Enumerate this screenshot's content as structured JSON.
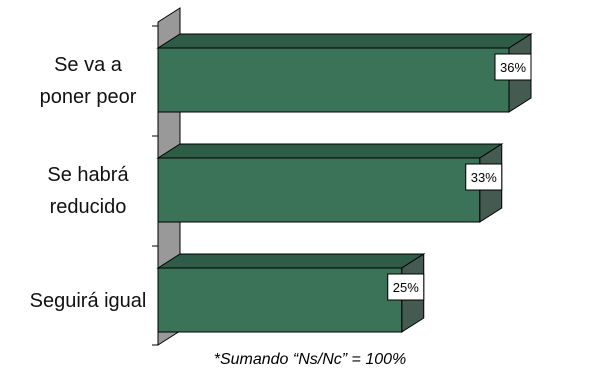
{
  "chart_data": {
    "type": "bar",
    "orientation": "horizontal",
    "three_d": true,
    "categories": [
      [
        "Se va a",
        "poner peor"
      ],
      [
        "Se habrá",
        "reducido"
      ],
      [
        "Seguirá igual"
      ]
    ],
    "values": [
      36,
      33,
      25
    ],
    "value_labels": [
      "36%",
      "33%",
      "25%"
    ],
    "xlim": [
      0,
      40
    ],
    "footnote": "*Sumando “Ns/Nc” = 100%",
    "colors": {
      "bar_front": "#3b7358",
      "bar_top": "#2f5c47",
      "bar_side": "#455a50",
      "wall": "#999999"
    }
  }
}
